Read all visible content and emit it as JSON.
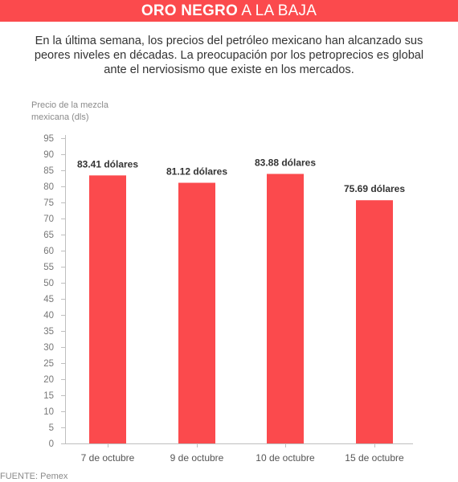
{
  "header": {
    "title_bold": "ORO NEGRO",
    "title_rest": "A LA BAJA"
  },
  "subtitle": "En la última semana, los precios del petróleo mexicano han alcanzado sus peores niveles en décadas. La preocupación por los petroprecios es global ante el nerviosismo que existe en los mercados.",
  "chart_data": {
    "type": "bar",
    "ylabel": "Precio de la mezcla mexicana (dls)",
    "xlabel": "",
    "categories": [
      "7 de octubre",
      "9 de octubre",
      "10 de octubre",
      "15 de octubre"
    ],
    "values": [
      83.41,
      81.12,
      83.88,
      75.69
    ],
    "data_labels": [
      "83.41 dólares",
      "81.12 dólares",
      "83.88 dólares",
      "75.69 dólares"
    ],
    "ylim": [
      0,
      95
    ],
    "yticks": [
      0,
      5,
      10,
      15,
      20,
      25,
      30,
      35,
      40,
      45,
      50,
      55,
      60,
      65,
      70,
      75,
      80,
      85,
      90,
      95
    ],
    "bar_color": "#fb4a4d",
    "grid": false
  },
  "footer": {
    "source": "FUENTE: Pemex"
  },
  "colors": {
    "accent": "#fb4a4d",
    "axis": "#bfbfbf"
  }
}
